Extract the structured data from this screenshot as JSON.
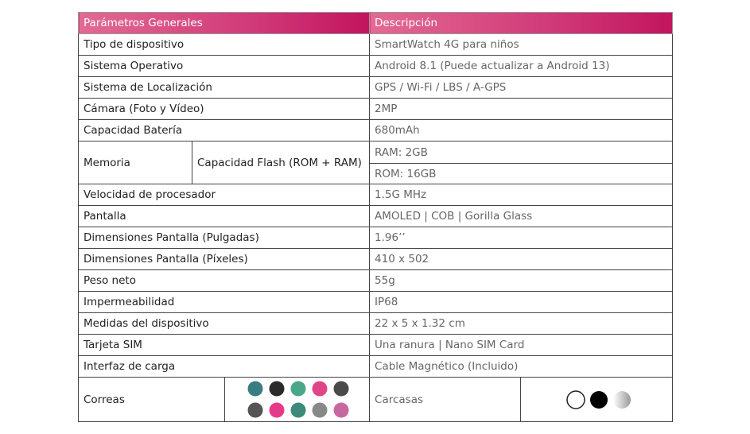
{
  "table": {
    "header": [
      "Parámetros Generales",
      "Descripción"
    ],
    "rows_a": [
      [
        "Tipo de dispositivo",
        "SmartWatch 4G para niños"
      ],
      [
        "Sistema Operativo",
        "Android 8.1 (Puede actualizar a Android 13)"
      ],
      [
        "Sistema de Localización",
        "GPS / Wi-Fi / LBS / A-GPS"
      ],
      [
        "Cámara (Foto y Vídeo)",
        "2MP"
      ],
      [
        "Capacidad Batería",
        "680mAh"
      ]
    ],
    "memory": {
      "label": "Memoria",
      "sub": "Capacidad Flash (ROM + RAM)",
      "values": [
        "RAM: 2GB",
        "ROM: 16GB"
      ]
    },
    "rows_b": [
      [
        "Velocidad de procesador",
        "1.5G MHz"
      ],
      [
        "Pantalla",
        "AMOLED | COB | Gorilla Glass"
      ],
      [
        "Dimensiones Pantalla (Pulgadas)",
        "1.96’’"
      ],
      [
        "Dimensiones Pantalla (Píxeles)",
        "410 x 502"
      ],
      [
        "Peso neto",
        "55g"
      ],
      [
        "Impermeabilidad",
        "IP68"
      ],
      [
        "Medidas del dispositivo",
        "22 x 5 x 1.32 cm"
      ],
      [
        "Tarjeta SIM",
        "Una ranura | Nano SIM Card"
      ],
      [
        "Interfaz de carga",
        "Cable Magnético (Incluido)"
      ]
    ],
    "straps": "Correas",
    "cases": "Carcasas"
  }
}
